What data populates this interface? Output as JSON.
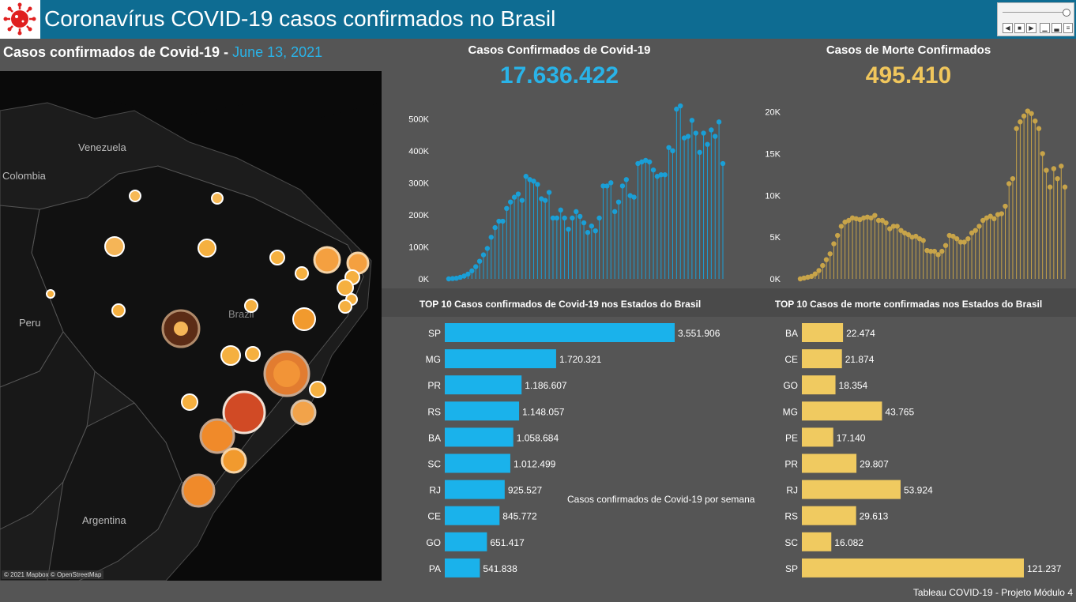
{
  "header": {
    "title": "Coronavírus COVID-19 casos confirmados no Brasil",
    "logo_icon": "virus-icon"
  },
  "map": {
    "title": "Casos confirmados de Covid-19",
    "separator": " - ",
    "date": "June 13, 2021",
    "credit": "© 2021 Mapbox © OpenStreetMap",
    "country_labels": [
      "Venezuela",
      "Colombia",
      "Peru",
      "Brazil",
      "Argentina"
    ]
  },
  "cases_panel": {
    "title": "Casos Confirmados de Covid-19",
    "total": "17.636.422",
    "color": "#29b3e8"
  },
  "deaths_panel": {
    "title": "Casos de Morte Confirmados",
    "total": "495.410",
    "color": "#f0c65c"
  },
  "chart_data": [
    {
      "type": "line",
      "title": "Casos Confirmados de Covid-19",
      "xlabel": "",
      "ylabel": "",
      "ylim": [
        0,
        550000
      ],
      "yticks": [
        0,
        100000,
        200000,
        300000,
        400000,
        500000
      ],
      "ytick_labels": [
        "0K",
        "100K",
        "200K",
        "300K",
        "400K",
        "500K"
      ],
      "series": [
        {
          "values": [
            0,
            1000,
            2000,
            5000,
            9000,
            15000,
            25000,
            38000,
            55000,
            75000,
            95000,
            130000,
            160000,
            180000,
            180000,
            220000,
            240000,
            255000,
            265000,
            245000,
            320000,
            310000,
            305000,
            295000,
            250000,
            245000,
            270000,
            190000,
            190000,
            215000,
            190000,
            155000,
            190000,
            210000,
            195000,
            175000,
            145000,
            165000,
            150000,
            190000,
            290000,
            290000,
            300000,
            210000,
            240000,
            290000,
            310000,
            260000,
            255000,
            360000,
            365000,
            370000,
            365000,
            340000,
            320000,
            325000,
            325000,
            410000,
            400000,
            530000,
            540000,
            440000,
            445000,
            495000,
            455000,
            395000,
            455000,
            420000,
            465000,
            445000,
            490000,
            360000
          ]
        }
      ]
    },
    {
      "type": "line",
      "title": "Casos de Morte Confirmados",
      "xlabel": "",
      "ylabel": "",
      "ylim": [
        0,
        21000
      ],
      "yticks": [
        0,
        5000,
        10000,
        15000,
        20000
      ],
      "ytick_labels": [
        "0K",
        "5K",
        "10K",
        "15K",
        "20K"
      ],
      "series": [
        {
          "values": [
            0,
            100,
            200,
            300,
            600,
            1000,
            1600,
            2300,
            3000,
            4200,
            5200,
            6300,
            6800,
            7000,
            7300,
            7200,
            7100,
            7300,
            7400,
            7300,
            7600,
            7000,
            7000,
            6700,
            6000,
            6300,
            6300,
            5800,
            5500,
            5300,
            5000,
            5100,
            4800,
            4600,
            3400,
            3300,
            3300,
            2900,
            3300,
            4000,
            5200,
            5100,
            4800,
            4400,
            4400,
            4800,
            5500,
            5800,
            6300,
            7000,
            7300,
            7500,
            7200,
            7700,
            7800,
            8700,
            11400,
            12000,
            18000,
            18800,
            19500,
            20100,
            19800,
            18900,
            18000,
            15000,
            13000,
            11000,
            13200,
            12000,
            13500,
            11000
          ]
        }
      ]
    },
    {
      "type": "bar",
      "title": "TOP 10 Casos confirmados de Covid-19 nos Estados do Brasil",
      "categories": [
        "SP",
        "MG",
        "PR",
        "RS",
        "BA",
        "SC",
        "RJ",
        "CE",
        "GO",
        "PA"
      ],
      "values": [
        3551906,
        1720321,
        1186607,
        1148057,
        1058684,
        1012499,
        925527,
        845772,
        651417,
        541838
      ],
      "value_labels": [
        "3.551.906",
        "1.720.321",
        "1.186.607",
        "1.148.057",
        "1.058.684",
        "1.012.499",
        "925.527",
        "845.772",
        "651.417",
        "541.838"
      ],
      "color": "#1ab2eb"
    },
    {
      "type": "bar",
      "title": "TOP 10 Casos de morte confirmadas nos Estados do Brasil",
      "categories": [
        "BA",
        "CE",
        "GO",
        "MG",
        "PE",
        "PR",
        "RJ",
        "RS",
        "SC",
        "SP"
      ],
      "values": [
        22474,
        21874,
        18354,
        43765,
        17140,
        29807,
        53924,
        29613,
        16082,
        121237
      ],
      "value_labels": [
        "22.474",
        "21.874",
        "18.354",
        "43.765",
        "17.140",
        "29.807",
        "53.924",
        "29.613",
        "16.082",
        "121.237"
      ],
      "color": "#f0ca60"
    }
  ],
  "weekly_label": "Casos confirmados de Covid-19 por semana",
  "footer": "Tableau COVID-19 - Projeto Módulo 4"
}
